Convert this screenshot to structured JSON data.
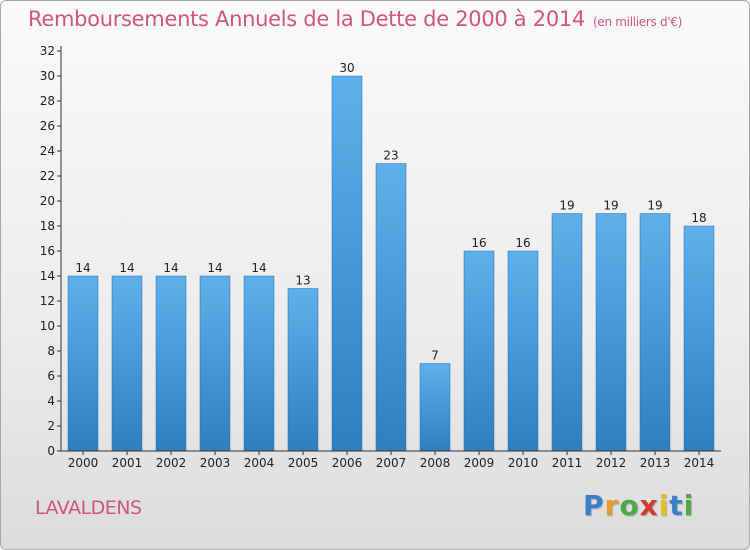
{
  "header": {
    "title": "Remboursements Annuels de la Dette de 2000 à 2014",
    "subtitle": "(en milliers d'€)"
  },
  "footer": {
    "place_name": "LAVALDENS",
    "logo": {
      "letters": [
        "P",
        "r",
        "o",
        "x",
        "i",
        "t",
        "i"
      ],
      "colors": [
        "#3a7fc8",
        "#e89b2a",
        "#4da84a",
        "#d23b2e",
        "#e0c21f",
        "#3a7fc8",
        "#4da84a"
      ]
    }
  },
  "chart_data": {
    "type": "bar",
    "categories": [
      "2000",
      "2001",
      "2002",
      "2003",
      "2004",
      "2005",
      "2006",
      "2007",
      "2008",
      "2009",
      "2010",
      "2011",
      "2012",
      "2013",
      "2014"
    ],
    "values": [
      14,
      14,
      14,
      14,
      14,
      13,
      30,
      23,
      7,
      16,
      16,
      19,
      19,
      19,
      18
    ],
    "data_labels": [
      "14",
      "14",
      "14",
      "14",
      "14",
      "13",
      "30",
      "23",
      "7",
      "16",
      "16",
      "19",
      "19",
      "19",
      "18"
    ],
    "yticks": [
      0,
      2,
      4,
      6,
      8,
      10,
      12,
      14,
      16,
      18,
      20,
      22,
      24,
      26,
      28,
      30,
      32
    ],
    "ylim": [
      0,
      32
    ],
    "grid": false,
    "legend": "none",
    "colors": {
      "bar_light": "#5fb0ea",
      "bar_dark": "#2f7fc0",
      "axis": "#333333",
      "text": "#222222"
    }
  }
}
